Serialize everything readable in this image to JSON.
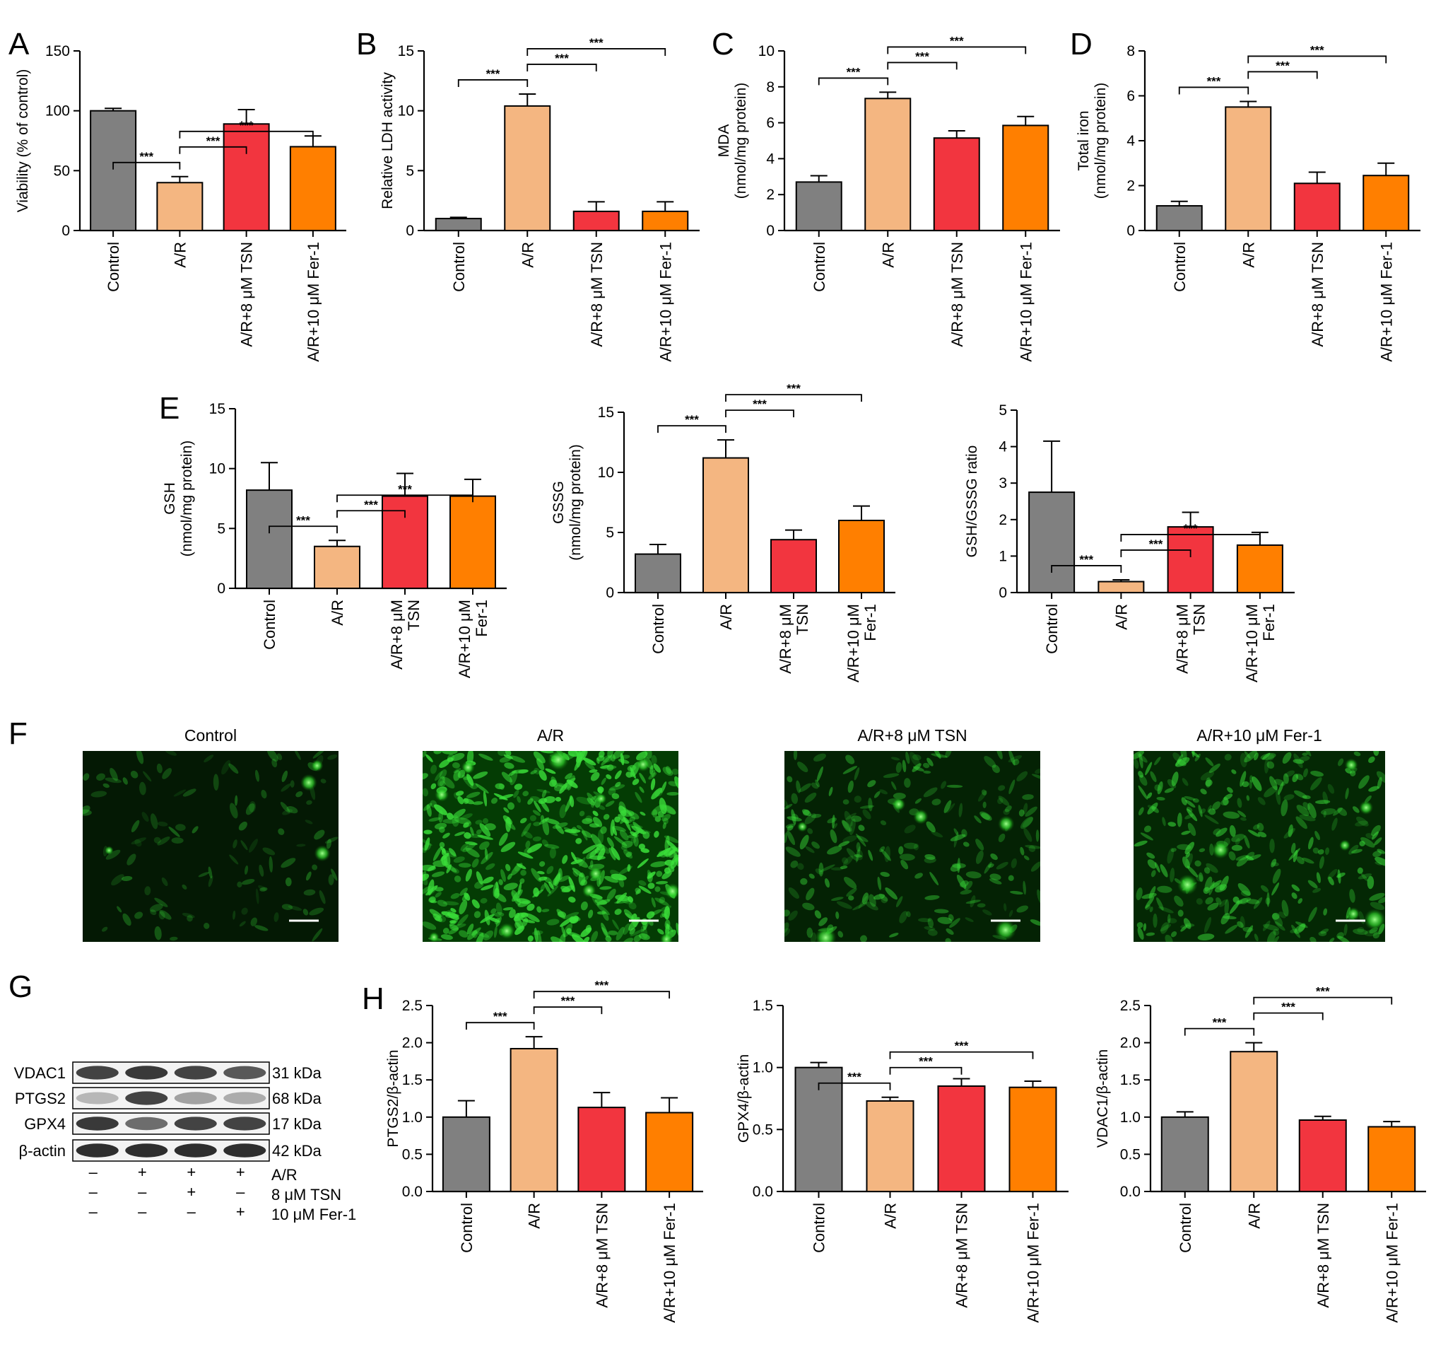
{
  "colors": {
    "Control": "#808080",
    "A/R": "#f4b681",
    "TSN": "#f2353f",
    "Fer": "#ff7f00",
    "axis": "#000000"
  },
  "star_label": "***",
  "chart_data": [
    {
      "id": "A",
      "panel_letter": "A",
      "type": "bar",
      "ylabel_lines": [
        "Viability (% of control)"
      ],
      "categories": [
        "Control",
        "A/R",
        "A/R+8 μM TSN",
        "A/R+10 μM Fer-1"
      ],
      "cat_lines": [
        [
          "Control"
        ],
        [
          "A/R"
        ],
        [
          "A/R+8 μM TSN"
        ],
        [
          "A/R+10 μM Fer-1"
        ]
      ],
      "values": [
        100,
        40,
        89,
        70
      ],
      "errors": [
        2,
        5,
        12,
        9
      ],
      "ylim": [
        0,
        150
      ],
      "yticks": [
        "0",
        "50",
        "100",
        "150"
      ],
      "comparisons": [
        {
          "from": 0,
          "to": 1,
          "label": "***"
        },
        {
          "from": 1,
          "to": 2,
          "label": "***"
        },
        {
          "from": 1,
          "to": 3,
          "label": "***"
        }
      ]
    },
    {
      "id": "B",
      "panel_letter": "B",
      "type": "bar",
      "ylabel_lines": [
        "Relative LDH activity"
      ],
      "categories": [
        "Control",
        "A/R",
        "A/R+8 μM TSN",
        "A/R+10 μM Fer-1"
      ],
      "cat_lines": [
        [
          "Control"
        ],
        [
          "A/R"
        ],
        [
          "A/R+8 μM TSN"
        ],
        [
          "A/R+10 μM Fer-1"
        ]
      ],
      "values": [
        1.0,
        10.4,
        1.6,
        1.6
      ],
      "errors": [
        0.1,
        1.0,
        0.8,
        0.8
      ],
      "ylim": [
        0,
        15
      ],
      "yticks": [
        "0",
        "5",
        "10",
        "15"
      ],
      "comparisons": [
        {
          "from": 0,
          "to": 1,
          "label": "***"
        },
        {
          "from": 1,
          "to": 2,
          "label": "***"
        },
        {
          "from": 1,
          "to": 3,
          "label": "***"
        }
      ]
    },
    {
      "id": "C",
      "panel_letter": "C",
      "type": "bar",
      "ylabel_lines": [
        "MDA",
        "(nmol/mg protein)"
      ],
      "categories": [
        "Control",
        "A/R",
        "A/R+8 μM TSN",
        "A/R+10 μM Fer-1"
      ],
      "cat_lines": [
        [
          "Control"
        ],
        [
          "A/R"
        ],
        [
          "A/R+8 μM TSN"
        ],
        [
          "A/R+10 μM Fer-1"
        ]
      ],
      "values": [
        2.7,
        7.35,
        5.15,
        5.85
      ],
      "errors": [
        0.35,
        0.35,
        0.4,
        0.5
      ],
      "ylim": [
        0,
        10
      ],
      "yticks": [
        "0",
        "2",
        "4",
        "6",
        "8",
        "10"
      ],
      "comparisons": [
        {
          "from": 0,
          "to": 1,
          "label": "***"
        },
        {
          "from": 1,
          "to": 2,
          "label": "***"
        },
        {
          "from": 1,
          "to": 3,
          "label": "***"
        }
      ]
    },
    {
      "id": "D",
      "panel_letter": "D",
      "type": "bar",
      "ylabel_lines": [
        "Total iron",
        "(nmol/mg protein)"
      ],
      "categories": [
        "Control",
        "A/R",
        "A/R+8 μM TSN",
        "A/R+10 μM Fer-1"
      ],
      "cat_lines": [
        [
          "Control"
        ],
        [
          "A/R"
        ],
        [
          "A/R+8 μM TSN"
        ],
        [
          "A/R+10 μM Fer-1"
        ]
      ],
      "values": [
        1.1,
        5.5,
        2.1,
        2.45
      ],
      "errors": [
        0.2,
        0.25,
        0.5,
        0.55
      ],
      "ylim": [
        0,
        8
      ],
      "yticks": [
        "0",
        "2",
        "4",
        "6",
        "8"
      ],
      "comparisons": [
        {
          "from": 0,
          "to": 1,
          "label": "***"
        },
        {
          "from": 1,
          "to": 2,
          "label": "***"
        },
        {
          "from": 1,
          "to": 3,
          "label": "***"
        }
      ]
    },
    {
      "id": "E1",
      "panel_letter": "E",
      "type": "bar",
      "ylabel_lines": [
        "GSH",
        "(nmol/mg protein)"
      ],
      "categories": [
        "Control",
        "A/R",
        "A/R+8 μM TSN",
        "A/R+10 μM Fer-1"
      ],
      "cat_lines": [
        [
          "Control"
        ],
        [
          "A/R"
        ],
        [
          "A/R+8 μM",
          "TSN"
        ],
        [
          "A/R+10 μM",
          "Fer-1"
        ]
      ],
      "values": [
        8.2,
        3.5,
        7.7,
        7.7
      ],
      "errors": [
        2.3,
        0.5,
        1.9,
        1.4
      ],
      "ylim": [
        0,
        15
      ],
      "yticks": [
        "0",
        "5",
        "10",
        "15"
      ],
      "comparisons": [
        {
          "from": 0,
          "to": 1,
          "label": "***"
        },
        {
          "from": 1,
          "to": 2,
          "label": "***"
        },
        {
          "from": 1,
          "to": 3,
          "label": "***"
        }
      ]
    },
    {
      "id": "E2",
      "panel_letter": "",
      "type": "bar",
      "ylabel_lines": [
        "GSSG",
        "(nmol/mg protein)"
      ],
      "categories": [
        "Control",
        "A/R",
        "A/R+8 μM TSN",
        "A/R+10 μM Fer-1"
      ],
      "cat_lines": [
        [
          "Control"
        ],
        [
          "A/R"
        ],
        [
          "A/R+8 μM",
          "TSN"
        ],
        [
          "A/R+10 μM",
          "Fer-1"
        ]
      ],
      "values": [
        3.2,
        11.2,
        4.4,
        6.0
      ],
      "errors": [
        0.8,
        1.5,
        0.8,
        1.2
      ],
      "ylim": [
        0,
        15
      ],
      "yticks": [
        "0",
        "5",
        "10",
        "15"
      ],
      "comparisons": [
        {
          "from": 0,
          "to": 1,
          "label": "***"
        },
        {
          "from": 1,
          "to": 2,
          "label": "***"
        },
        {
          "from": 1,
          "to": 3,
          "label": "***"
        }
      ]
    },
    {
      "id": "E3",
      "panel_letter": "",
      "type": "bar",
      "ylabel_lines": [
        "GSH/GSSG ratio"
      ],
      "categories": [
        "Control",
        "A/R",
        "A/R+8 μM TSN",
        "A/R+10 μM Fer-1"
      ],
      "cat_lines": [
        [
          "Control"
        ],
        [
          "A/R"
        ],
        [
          "A/R+8 μM",
          "TSN"
        ],
        [
          "A/R+10 μM",
          "Fer-1"
        ]
      ],
      "values": [
        2.75,
        0.3,
        1.8,
        1.3
      ],
      "errors": [
        1.4,
        0.05,
        0.4,
        0.35
      ],
      "ylim": [
        0,
        5
      ],
      "yticks": [
        "0",
        "1",
        "2",
        "3",
        "4",
        "5"
      ],
      "comparisons": [
        {
          "from": 0,
          "to": 1,
          "label": "***"
        },
        {
          "from": 1,
          "to": 2,
          "label": "***"
        },
        {
          "from": 1,
          "to": 3,
          "label": "***"
        }
      ]
    },
    {
      "id": "H1",
      "panel_letter": "H",
      "type": "bar",
      "ylabel_lines": [
        "PTGS2/β-actin"
      ],
      "categories": [
        "Control",
        "A/R",
        "A/R+8 μM TSN",
        "A/R+10 μM Fer-1"
      ],
      "cat_lines": [
        [
          "Control"
        ],
        [
          "A/R"
        ],
        [
          "A/R+8 μM TSN"
        ],
        [
          "A/R+10 μM Fer-1"
        ]
      ],
      "values": [
        1.0,
        1.92,
        1.13,
        1.06
      ],
      "errors": [
        0.22,
        0.16,
        0.2,
        0.2
      ],
      "ylim": [
        0,
        2.5
      ],
      "yticks": [
        "0.0",
        "0.5",
        "1.0",
        "1.5",
        "2.0",
        "2.5"
      ],
      "comparisons": [
        {
          "from": 0,
          "to": 1,
          "label": "***"
        },
        {
          "from": 1,
          "to": 2,
          "label": "***"
        },
        {
          "from": 1,
          "to": 3,
          "label": "***"
        }
      ]
    },
    {
      "id": "H2",
      "panel_letter": "",
      "type": "bar",
      "ylabel_lines": [
        "GPX4/β-actin"
      ],
      "categories": [
        "Control",
        "A/R",
        "A/R+8 μM TSN",
        "A/R+10 μM Fer-1"
      ],
      "cat_lines": [
        [
          "Control"
        ],
        [
          "A/R"
        ],
        [
          "A/R+8 μM TSN"
        ],
        [
          "A/R+10 μM Fer-1"
        ]
      ],
      "values": [
        1.0,
        0.73,
        0.85,
        0.84
      ],
      "errors": [
        0.04,
        0.03,
        0.06,
        0.05
      ],
      "ylim": [
        0,
        1.5
      ],
      "yticks": [
        "0.0",
        "0.5",
        "1.0",
        "1.5"
      ],
      "comparisons": [
        {
          "from": 0,
          "to": 1,
          "label": "***"
        },
        {
          "from": 1,
          "to": 2,
          "label": "***"
        },
        {
          "from": 1,
          "to": 3,
          "label": "***"
        }
      ]
    },
    {
      "id": "H3",
      "panel_letter": "",
      "type": "bar",
      "ylabel_lines": [
        "VDAC1/β-actin"
      ],
      "categories": [
        "Control",
        "A/R",
        "A/R+8 μM TSN",
        "A/R+10 μM Fer-1"
      ],
      "cat_lines": [
        [
          "Control"
        ],
        [
          "A/R"
        ],
        [
          "A/R+8 μM TSN"
        ],
        [
          "A/R+10 μM Fer-1"
        ]
      ],
      "values": [
        1.0,
        1.88,
        0.96,
        0.87
      ],
      "errors": [
        0.07,
        0.12,
        0.05,
        0.07
      ],
      "ylim": [
        0,
        2.5
      ],
      "yticks": [
        "0.0",
        "0.5",
        "1.0",
        "1.5",
        "2.0",
        "2.5"
      ],
      "comparisons": [
        {
          "from": 0,
          "to": 1,
          "label": "***"
        },
        {
          "from": 1,
          "to": 2,
          "label": "***"
        },
        {
          "from": 1,
          "to": 3,
          "label": "***"
        }
      ]
    }
  ],
  "panel_f": {
    "letter": "F",
    "images": [
      {
        "title": "Control",
        "brightness": 0.12
      },
      {
        "title": "A/R",
        "brightness": 1.0
      },
      {
        "title": "A/R+8 μM TSN",
        "brightness": 0.35
      },
      {
        "title": "A/R+10 μM Fer-1",
        "brightness": 0.5
      }
    ]
  },
  "panel_g": {
    "letter": "G",
    "bands": [
      {
        "protein": "VDAC1",
        "size": "31 kDa",
        "intensity": [
          0.8,
          0.85,
          0.8,
          0.7
        ]
      },
      {
        "protein": "PTGS2",
        "size": "68 kDa",
        "intensity": [
          0.25,
          0.8,
          0.35,
          0.3
        ]
      },
      {
        "protein": "GPX4",
        "size": "17 kDa",
        "intensity": [
          0.85,
          0.6,
          0.8,
          0.8
        ]
      },
      {
        "protein": "β-actin",
        "size": "42 kDa",
        "intensity": [
          0.9,
          0.9,
          0.9,
          0.9
        ]
      }
    ],
    "treatments": [
      {
        "label": "A/R",
        "signs": [
          "–",
          "+",
          "+",
          "+"
        ]
      },
      {
        "label": "8 μM TSN",
        "signs": [
          "–",
          "–",
          "+",
          "–"
        ]
      },
      {
        "label": "10 μM Fer-1",
        "signs": [
          "–",
          "–",
          "–",
          "+"
        ]
      }
    ]
  }
}
